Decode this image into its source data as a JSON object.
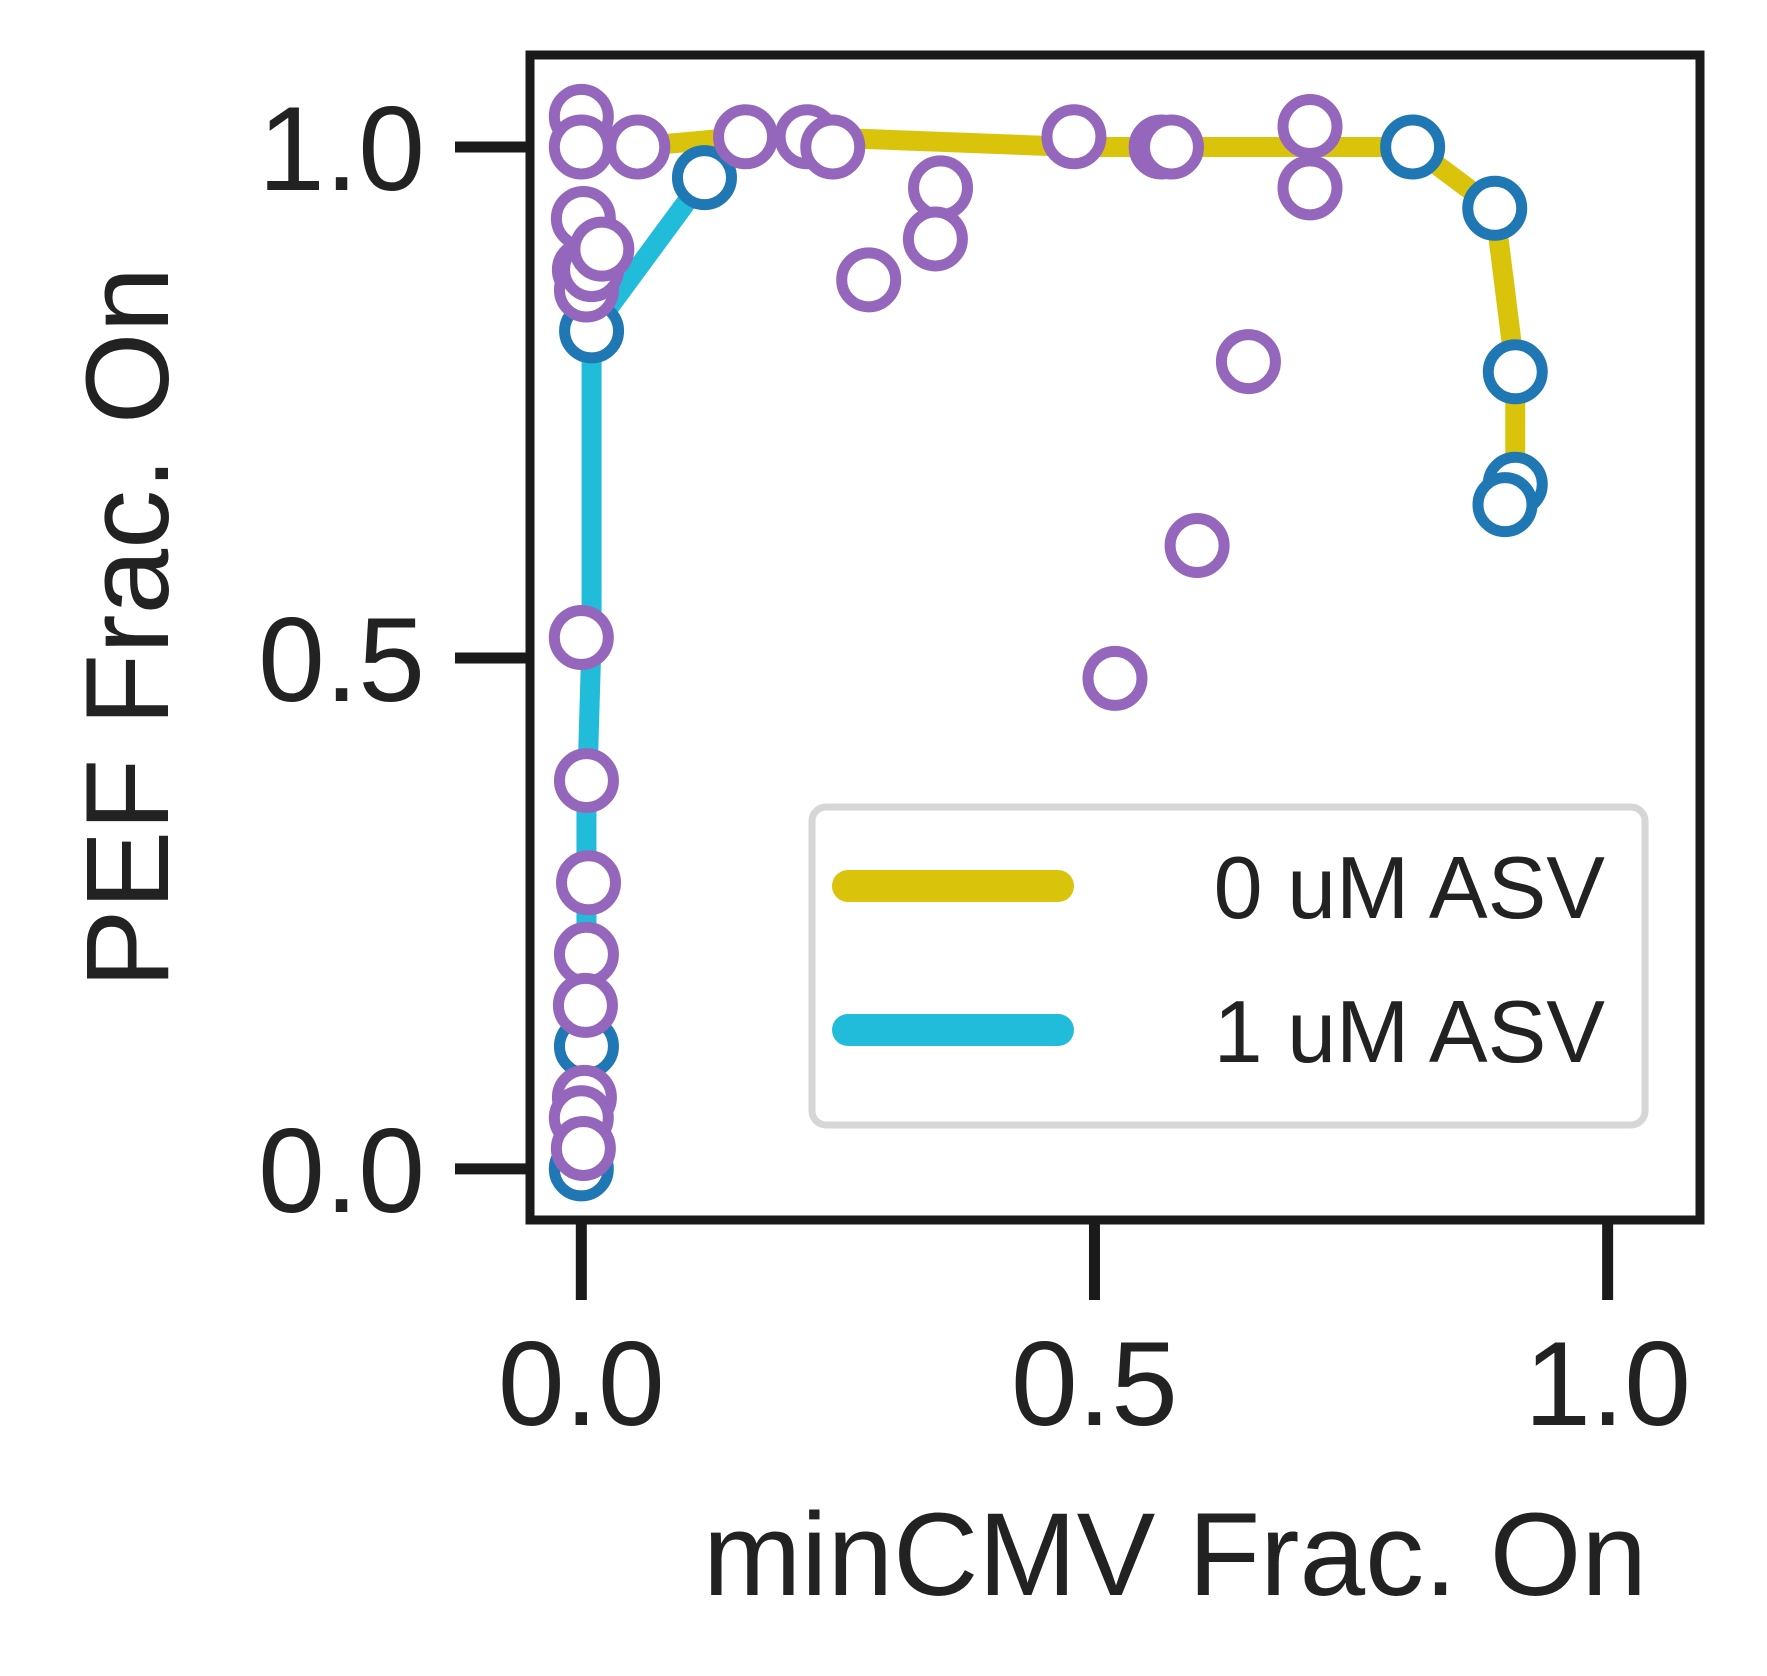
{
  "chart_data": {
    "type": "scatter",
    "title": "",
    "xlabel": "minCMV Frac. On",
    "ylabel": "PEF Frac. On",
    "xlim": [
      -0.05,
      1.09
    ],
    "ylim": [
      -0.05,
      1.09
    ],
    "xticks": [
      "0.0",
      "0.5",
      "1.0"
    ],
    "yticks": [
      "0.0",
      "0.5",
      "1.0"
    ],
    "xtick_values": [
      0.0,
      0.5,
      1.0
    ],
    "ytick_values": [
      0.0,
      0.5,
      1.0
    ],
    "grid": false,
    "legend_position": "lower-right",
    "legend": [
      {
        "label": "0 uM ASV",
        "color": "#d9c40b"
      },
      {
        "label": "1 uM ASV",
        "color": "#22bcdb"
      }
    ],
    "lines": [
      {
        "name": "0 uM ASV",
        "color": "#d9c40b",
        "x": [
          0.0,
          0.05,
          0.16,
          0.22,
          0.48,
          0.57,
          0.71,
          0.81,
          0.89,
          0.91,
          0.91,
          0.9
        ],
        "y": [
          1.0,
          1.0,
          1.01,
          1.01,
          1.0,
          1.0,
          1.0,
          1.0,
          0.94,
          0.78,
          0.67,
          0.65
        ]
      },
      {
        "name": "1 uM ASV",
        "color": "#22bcdb",
        "x": [
          0.0,
          0.005,
          0.005,
          0.01,
          0.01,
          0.12
        ],
        "y": [
          0.0,
          0.12,
          0.35,
          0.52,
          0.82,
          0.97
        ]
      }
    ],
    "scatter_blue": {
      "color": "#1f77b4",
      "x": [
        0.0,
        0.005,
        0.01,
        0.12,
        0.81,
        0.89,
        0.91,
        0.91,
        0.9
      ],
      "y": [
        0.0,
        0.12,
        0.82,
        0.97,
        1.0,
        0.94,
        0.78,
        0.67,
        0.65
      ]
    },
    "scatter_purple": {
      "color": "#9467bd",
      "x": [
        0.0,
        0.0,
        0.002,
        0.003,
        0.005,
        0.01,
        0.02,
        0.055,
        0.0,
        0.005,
        0.007,
        0.005,
        0.004,
        0.003,
        0.0,
        0.002,
        0.16,
        0.22,
        0.245,
        0.28,
        0.35,
        0.345,
        0.48,
        0.565,
        0.575,
        0.71,
        0.71,
        0.65,
        0.6,
        0.52
      ],
      "y": [
        1.03,
        1.0,
        0.93,
        0.88,
        0.86,
        0.88,
        0.9,
        1.0,
        0.52,
        0.38,
        0.28,
        0.21,
        0.16,
        0.07,
        0.05,
        0.02,
        1.01,
        1.01,
        1.0,
        0.87,
        0.96,
        0.91,
        1.01,
        1.0,
        1.0,
        1.02,
        0.96,
        0.79,
        0.61,
        0.48
      ]
    }
  }
}
